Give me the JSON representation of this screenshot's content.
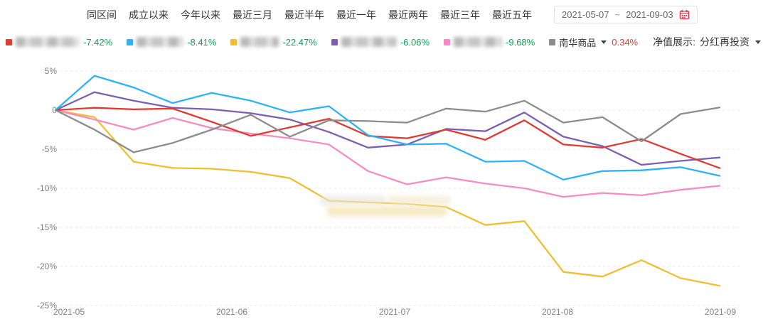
{
  "header": {
    "tabs": [
      "同区间",
      "成立以来",
      "今年以来",
      "最近三月",
      "最近半年",
      "最近一年",
      "最近两年",
      "最近三年",
      "最近五年"
    ],
    "date_range": {
      "start": "2021-05-07",
      "separator": "~",
      "end": "2021-09-03"
    }
  },
  "legend": {
    "items": [
      {
        "id": "fund-1",
        "name_blurred": true,
        "color": "#dc3c34",
        "value": "-7.42%",
        "value_color": "#0fa05a"
      },
      {
        "id": "fund-2",
        "name_blurred": true,
        "color": "#2db3f5",
        "value": "-8.41%",
        "value_color": "#0fa05a"
      },
      {
        "id": "fund-3",
        "name_blurred": true,
        "color": "#eec02f",
        "value": "-22.47%",
        "value_color": "#0fa05a"
      },
      {
        "id": "fund-4",
        "name_blurred": true,
        "color": "#7b5fb0",
        "value": "-6.06%",
        "value_color": "#0fa05a"
      },
      {
        "id": "fund-5",
        "name_blurred": true,
        "color": "#f78cc5",
        "value": "-9.68%",
        "value_color": "#0fa05a"
      },
      {
        "id": "benchmark",
        "name": "南华商品",
        "color": "#8c8c8c",
        "value": "0.34%",
        "value_color": "#e23b3b",
        "has_dropdown": true
      }
    ],
    "nav_display_label": "净值展示:",
    "nav_display_value": "分红再投资"
  },
  "chart_data": {
    "type": "line",
    "x": [
      "2021-05-07",
      "2021-05-14",
      "2021-05-21",
      "2021-05-28",
      "2021-06-04",
      "2021-06-11",
      "2021-06-18",
      "2021-06-25",
      "2021-07-02",
      "2021-07-09",
      "2021-07-16",
      "2021-07-23",
      "2021-07-30",
      "2021-08-06",
      "2021-08-13",
      "2021-08-20",
      "2021-08-27",
      "2021-09-03"
    ],
    "xticks": [
      "2021-05",
      "2021-06",
      "2021-07",
      "2021-08",
      "2021-09"
    ],
    "yticks": [
      {
        "v": 5,
        "label": "5%"
      },
      {
        "v": 0,
        "label": "0"
      },
      {
        "v": -5,
        "label": "-5%"
      },
      {
        "v": -10,
        "label": "-10%"
      },
      {
        "v": -15,
        "label": "-15%"
      },
      {
        "v": -20,
        "label": "-20%"
      },
      {
        "v": -25,
        "label": "-25%"
      }
    ],
    "ylim": [
      -25,
      5
    ],
    "ylabel": "",
    "xlabel": "",
    "grid": "horizontal-dashed",
    "legend_position": "top",
    "series": [
      {
        "id": "fund-3",
        "name": "",
        "color": "#eec02f",
        "values": [
          0,
          -0.9,
          -6.6,
          -7.4,
          -7.5,
          -7.9,
          -8.7,
          -11.6,
          -11.8,
          -12.0,
          -12.4,
          -14.7,
          -14.2,
          -20.7,
          -21.3,
          -19.2,
          -21.5,
          -22.47
        ]
      },
      {
        "id": "fund-5",
        "name": "",
        "color": "#f78cc5",
        "values": [
          0,
          -1.2,
          -2.5,
          -1.0,
          -2.3,
          -3.0,
          -3.6,
          -4.4,
          -7.8,
          -9.5,
          -8.6,
          -9.4,
          -10.0,
          -11.1,
          -10.6,
          -10.9,
          -10.2,
          -9.68
        ]
      },
      {
        "id": "fund-4",
        "name": "",
        "color": "#7b5fb0",
        "values": [
          0,
          2.3,
          1.2,
          0.3,
          0.1,
          -0.4,
          -1.2,
          -2.8,
          -4.8,
          -4.4,
          -2.4,
          -2.7,
          -0.3,
          -3.4,
          -4.6,
          -7.0,
          -6.5,
          -6.06
        ]
      },
      {
        "id": "fund-1",
        "name": "",
        "color": "#dc3c34",
        "values": [
          0,
          0.3,
          0.1,
          0.2,
          -1.5,
          -3.3,
          -2.2,
          -1.1,
          -3.3,
          -3.6,
          -2.5,
          -3.8,
          -1.3,
          -4.4,
          -4.8,
          -3.7,
          -5.6,
          -7.42
        ]
      },
      {
        "id": "benchmark",
        "name": "南华商品",
        "color": "#8c8c8c",
        "values": [
          0,
          -2.5,
          -5.4,
          -4.2,
          -2.5,
          -0.6,
          -3.4,
          -1.3,
          -1.4,
          -1.6,
          0.2,
          -0.2,
          1.2,
          -1.6,
          -0.9,
          -4.0,
          -0.5,
          0.34
        ]
      },
      {
        "id": "fund-2",
        "name": "",
        "color": "#2db3f5",
        "values": [
          0,
          4.4,
          2.9,
          0.9,
          2.2,
          1.2,
          -0.3,
          0.5,
          -3.2,
          -4.4,
          -4.3,
          -6.6,
          -6.5,
          -8.9,
          -7.8,
          -7.7,
          -7.3,
          -8.41
        ]
      }
    ]
  }
}
